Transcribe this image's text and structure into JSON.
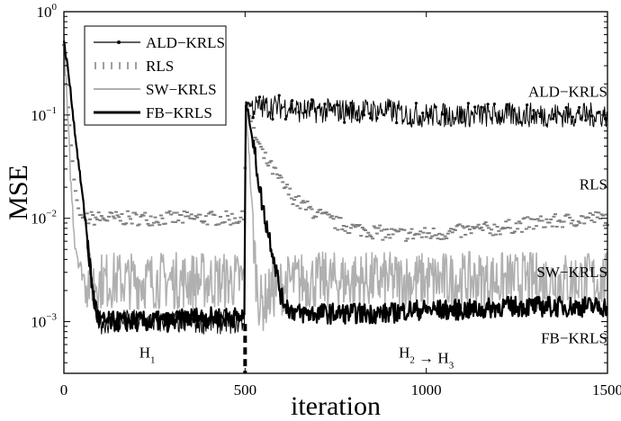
{
  "chart_data": {
    "type": "line",
    "xlabel": "iteration",
    "ylabel": "MSE",
    "xlim": [
      0,
      1500
    ],
    "ylim": [
      0.000316,
      1
    ],
    "yscale": "log",
    "grid": false,
    "legend_position": "top-left",
    "xticks": [
      "0",
      "500",
      "1000",
      "1500"
    ],
    "xtick_values": [
      0,
      500,
      1000,
      1500
    ],
    "yticks": [
      {
        "base": "10",
        "exp": "0",
        "value": 1
      },
      {
        "base": "10",
        "exp": "−1",
        "value": 0.1
      },
      {
        "base": "10",
        "exp": "−2",
        "value": 0.01
      },
      {
        "base": "10",
        "exp": "−3",
        "value": 0.001
      }
    ],
    "x": [
      0,
      10,
      20,
      30,
      40,
      50,
      60,
      70,
      80,
      90,
      100,
      150,
      200,
      250,
      300,
      350,
      400,
      450,
      499,
      501,
      510,
      520,
      530,
      540,
      550,
      575,
      600,
      625,
      650,
      700,
      750,
      800,
      850,
      900,
      950,
      1000,
      1050,
      1100,
      1150,
      1200,
      1250,
      1300,
      1350,
      1400,
      1450,
      1500
    ],
    "series": [
      {
        "name": "ALD−KRLS",
        "color": "#000000",
        "style": "solid-dot",
        "values": [
          0.5,
          0.3,
          0.15,
          0.07,
          0.035,
          0.018,
          0.009,
          0.004,
          0.0018,
          0.0012,
          0.001,
          0.001,
          0.001,
          0.001,
          0.001,
          0.001,
          0.001,
          0.001,
          0.001,
          0.13,
          0.13,
          0.12,
          0.12,
          0.12,
          0.12,
          0.12,
          0.12,
          0.12,
          0.11,
          0.11,
          0.11,
          0.11,
          0.11,
          0.11,
          0.1,
          0.1,
          0.1,
          0.1,
          0.1,
          0.1,
          0.1,
          0.1,
          0.1,
          0.1,
          0.1,
          0.1
        ]
      },
      {
        "name": "RLS",
        "color": "#808080",
        "style": "dashed",
        "values": [
          0.5,
          0.15,
          0.05,
          0.02,
          0.012,
          0.01,
          0.01,
          0.01,
          0.01,
          0.01,
          0.01,
          0.01,
          0.01,
          0.01,
          0.01,
          0.01,
          0.01,
          0.01,
          0.01,
          0.13,
          0.1,
          0.08,
          0.06,
          0.05,
          0.04,
          0.03,
          0.022,
          0.017,
          0.014,
          0.011,
          0.009,
          0.008,
          0.0075,
          0.007,
          0.007,
          0.007,
          0.0072,
          0.0075,
          0.0078,
          0.008,
          0.0085,
          0.009,
          0.0093,
          0.0096,
          0.01,
          0.01
        ]
      },
      {
        "name": "SW−KRLS",
        "color": "#b0b0b0",
        "style": "solid",
        "values": [
          0.6,
          0.1,
          0.02,
          0.006,
          0.004,
          0.003,
          0.0025,
          0.0025,
          0.0025,
          0.0025,
          0.0025,
          0.0025,
          0.0025,
          0.0025,
          0.0025,
          0.0025,
          0.0025,
          0.0025,
          0.0025,
          0.13,
          0.05,
          0.01,
          0.003,
          0.0015,
          0.0015,
          0.002,
          0.0022,
          0.0024,
          0.0025,
          0.0025,
          0.0025,
          0.0025,
          0.0025,
          0.0025,
          0.0025,
          0.0025,
          0.0025,
          0.0025,
          0.0025,
          0.0025,
          0.0025,
          0.0025,
          0.0025,
          0.0025,
          0.0025,
          0.0025
        ]
      },
      {
        "name": "FB−KRLS",
        "color": "#000000",
        "style": "thick",
        "values": [
          0.5,
          0.3,
          0.15,
          0.07,
          0.035,
          0.018,
          0.009,
          0.004,
          0.0018,
          0.0012,
          0.001,
          0.001,
          0.001,
          0.001,
          0.001,
          0.0011,
          0.0011,
          0.0011,
          0.0011,
          0.13,
          0.1,
          0.06,
          0.035,
          0.02,
          0.012,
          0.005,
          0.0017,
          0.0013,
          0.0012,
          0.0012,
          0.0012,
          0.0012,
          0.0012,
          0.0012,
          0.0013,
          0.0013,
          0.0013,
          0.0013,
          0.0013,
          0.0014,
          0.0014,
          0.0014,
          0.0014,
          0.0014,
          0.0014,
          0.0014
        ]
      }
    ],
    "annotations": [
      {
        "text": "ALD−KRLS",
        "sub": "",
        "x": 1480,
        "y": 0.15
      },
      {
        "text": "RLS",
        "sub": "",
        "x": 1480,
        "y": 0.019
      },
      {
        "text": "SW−KRLS",
        "sub": "",
        "x": 1480,
        "y": 0.0027
      },
      {
        "text": "FB−KRLS",
        "sub": "",
        "x": 1480,
        "y": 0.00062
      },
      {
        "text": "H",
        "sub": "1",
        "x": 230,
        "y": 0.00045
      },
      {
        "text": "H",
        "sub": "2",
        "text2": " → H",
        "sub2": "3",
        "x": 1000,
        "y": 0.00045
      }
    ]
  }
}
